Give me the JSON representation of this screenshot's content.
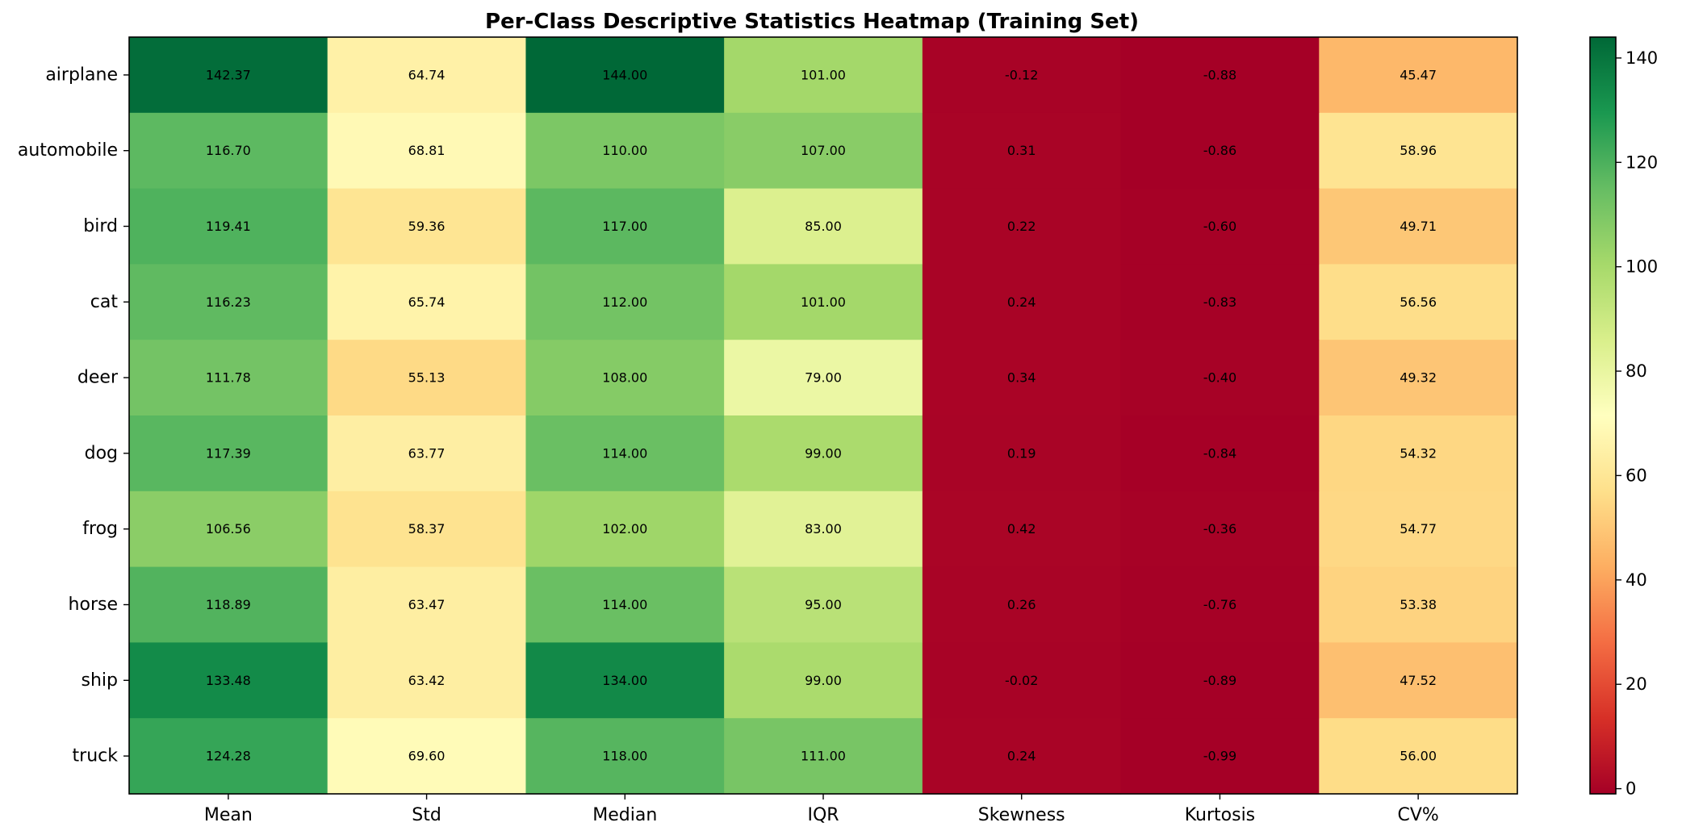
{
  "chart_data": {
    "type": "heatmap",
    "title": "Per-Class Descriptive Statistics Heatmap (Training Set)",
    "xlabel": "",
    "ylabel": "",
    "columns": [
      "Mean",
      "Std",
      "Median",
      "IQR",
      "Skewness",
      "Kurtosis",
      "CV%"
    ],
    "rows": [
      "airplane",
      "automobile",
      "bird",
      "cat",
      "deer",
      "dog",
      "frog",
      "horse",
      "ship",
      "truck"
    ],
    "values": [
      [
        142.37,
        64.74,
        144.0,
        101.0,
        -0.12,
        -0.88,
        45.47
      ],
      [
        116.7,
        68.81,
        110.0,
        107.0,
        0.31,
        -0.86,
        58.96
      ],
      [
        119.41,
        59.36,
        117.0,
        85.0,
        0.22,
        -0.6,
        49.71
      ],
      [
        116.23,
        65.74,
        112.0,
        101.0,
        0.24,
        -0.83,
        56.56
      ],
      [
        111.78,
        55.13,
        108.0,
        79.0,
        0.34,
        -0.4,
        49.32
      ],
      [
        117.39,
        63.77,
        114.0,
        99.0,
        0.19,
        -0.84,
        54.32
      ],
      [
        106.56,
        58.37,
        102.0,
        83.0,
        0.42,
        -0.36,
        54.77
      ],
      [
        118.89,
        63.47,
        114.0,
        95.0,
        0.26,
        -0.76,
        53.38
      ],
      [
        133.48,
        63.42,
        134.0,
        99.0,
        -0.02,
        -0.89,
        47.52
      ],
      [
        124.28,
        69.6,
        118.0,
        111.0,
        0.24,
        -0.99,
        56.0
      ]
    ],
    "value_labels": [
      [
        "142.37",
        "64.74",
        "144.00",
        "101.00",
        "-0.12",
        "-0.88",
        "45.47"
      ],
      [
        "116.70",
        "68.81",
        "110.00",
        "107.00",
        "0.31",
        "-0.86",
        "58.96"
      ],
      [
        "119.41",
        "59.36",
        "117.00",
        "85.00",
        "0.22",
        "-0.60",
        "49.71"
      ],
      [
        "116.23",
        "65.74",
        "112.00",
        "101.00",
        "0.24",
        "-0.83",
        "56.56"
      ],
      [
        "111.78",
        "55.13",
        "108.00",
        "79.00",
        "0.34",
        "-0.40",
        "49.32"
      ],
      [
        "117.39",
        "63.77",
        "114.00",
        "99.00",
        "0.19",
        "-0.84",
        "54.32"
      ],
      [
        "106.56",
        "58.37",
        "102.00",
        "83.00",
        "0.42",
        "-0.36",
        "54.77"
      ],
      [
        "118.89",
        "63.47",
        "114.00",
        "95.00",
        "0.26",
        "-0.76",
        "53.38"
      ],
      [
        "133.48",
        "63.42",
        "134.00",
        "99.00",
        "-0.02",
        "-0.89",
        "47.52"
      ],
      [
        "124.28",
        "69.60",
        "118.00",
        "111.00",
        "0.24",
        "-0.99",
        "56.00"
      ]
    ],
    "colormap": "RdYlGn",
    "colormap_stops": [
      "#a50026",
      "#d73027",
      "#f46d43",
      "#fdae61",
      "#fee08b",
      "#ffffbf",
      "#d9ef8b",
      "#a6d96a",
      "#66bd63",
      "#1a9850",
      "#006837"
    ],
    "color_range": [
      -0.99,
      144.0
    ],
    "colorbar_ticks": [
      0,
      20,
      40,
      60,
      80,
      100,
      120,
      140
    ],
    "colorbar_tick_labels": [
      "0",
      "20",
      "40",
      "60",
      "80",
      "100",
      "120",
      "140"
    ],
    "colorbar_orientation": "vertical, right of heatmap",
    "grid": false
  }
}
